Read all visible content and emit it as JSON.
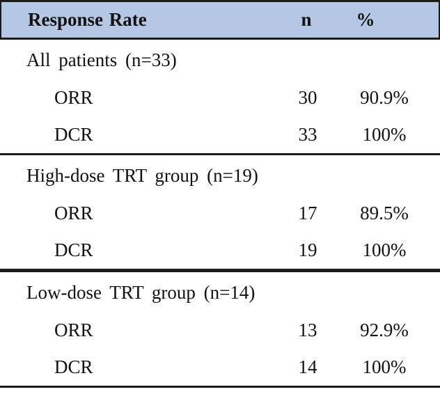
{
  "table": {
    "header": {
      "response_rate": "Response Rate",
      "n": "n",
      "percent": "%"
    },
    "sections": [
      {
        "group": "All patients (n=33)",
        "rows": [
          {
            "label": "ORR",
            "n": "30",
            "percent": "90.9%"
          },
          {
            "label": "DCR",
            "n": "33",
            "percent": "100%"
          }
        ]
      },
      {
        "group": "High-dose TRT group (n=19)",
        "rows": [
          {
            "label": "ORR",
            "n": "17",
            "percent": "89.5%"
          },
          {
            "label": "DCR",
            "n": "19",
            "percent": "100%"
          }
        ]
      },
      {
        "group": "Low-dose TRT group (n=14)",
        "rows": [
          {
            "label": "ORR",
            "n": "13",
            "percent": "92.9%"
          },
          {
            "label": "DCR",
            "n": "14",
            "percent": "100%"
          }
        ]
      }
    ]
  },
  "colors": {
    "header_bg": "#b4c7e4",
    "border": "#1a1a1a",
    "text": "#111111",
    "page_bg": "#ffffff"
  }
}
